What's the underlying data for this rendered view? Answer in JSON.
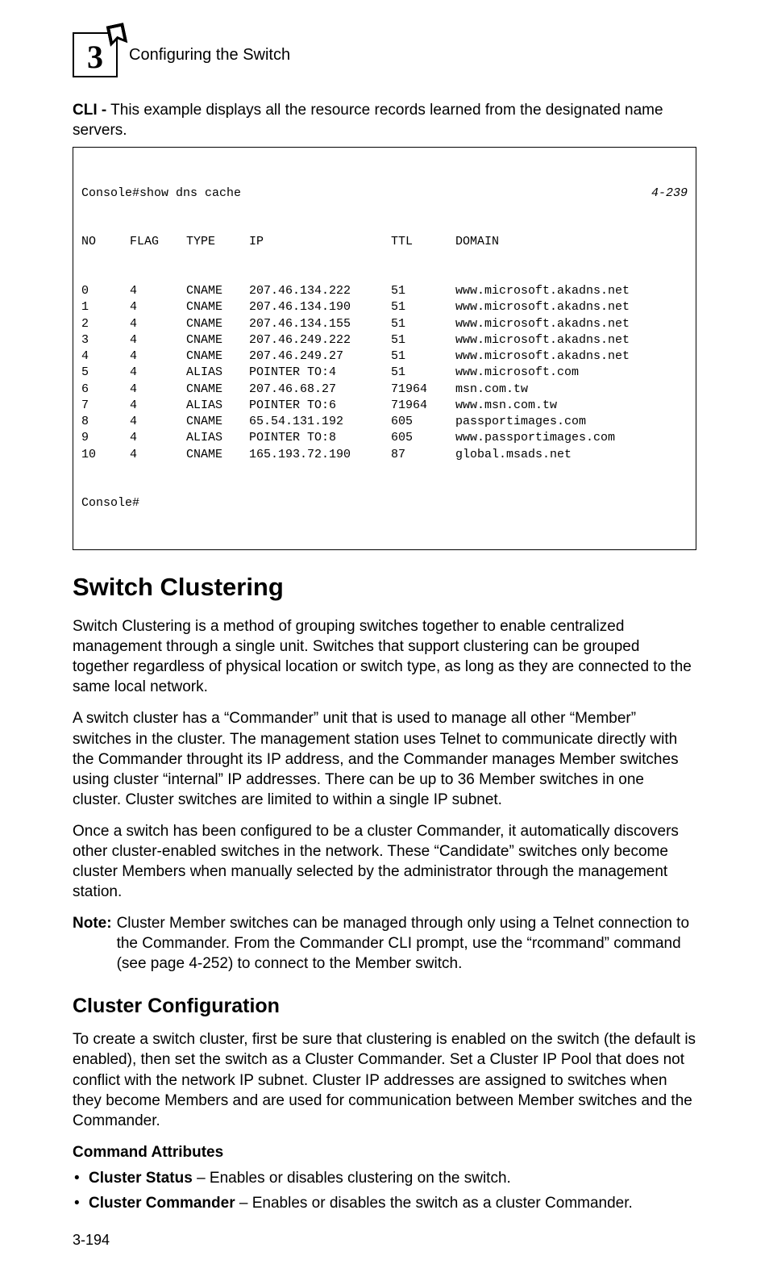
{
  "header": {
    "chapter_number": "3",
    "chapter_title": "Configuring the Switch"
  },
  "cli_intro": {
    "prefix_bold": "CLI -",
    "rest": " This example displays all the resource records learned from the designated name servers."
  },
  "code": {
    "top_left": "Console#show dns cache",
    "top_right": "4-239",
    "headers": {
      "no": "NO",
      "flag": "FLAG",
      "type": "TYPE",
      "ip": "IP",
      "ttl": "TTL",
      "domain": "DOMAIN"
    },
    "rows": [
      {
        "no": "0",
        "flag": "4",
        "type": "CNAME",
        "ip": "207.46.134.222",
        "ttl": "51",
        "domain": "www.microsoft.akadns.net"
      },
      {
        "no": "1",
        "flag": "4",
        "type": "CNAME",
        "ip": "207.46.134.190",
        "ttl": "51",
        "domain": "www.microsoft.akadns.net"
      },
      {
        "no": "2",
        "flag": "4",
        "type": "CNAME",
        "ip": "207.46.134.155",
        "ttl": "51",
        "domain": "www.microsoft.akadns.net"
      },
      {
        "no": "3",
        "flag": "4",
        "type": "CNAME",
        "ip": "207.46.249.222",
        "ttl": "51",
        "domain": "www.microsoft.akadns.net"
      },
      {
        "no": "4",
        "flag": "4",
        "type": "CNAME",
        "ip": "207.46.249.27",
        "ttl": "51",
        "domain": "www.microsoft.akadns.net"
      },
      {
        "no": "5",
        "flag": "4",
        "type": "ALIAS",
        "ip": "POINTER TO:4",
        "ttl": "51",
        "domain": "www.microsoft.com"
      },
      {
        "no": "6",
        "flag": "4",
        "type": "CNAME",
        "ip": "207.46.68.27",
        "ttl": "71964",
        "domain": "msn.com.tw"
      },
      {
        "no": "7",
        "flag": "4",
        "type": "ALIAS",
        "ip": "POINTER TO:6",
        "ttl": "71964",
        "domain": "www.msn.com.tw"
      },
      {
        "no": "8",
        "flag": "4",
        "type": "CNAME",
        "ip": "65.54.131.192",
        "ttl": "605",
        "domain": "passportimages.com"
      },
      {
        "no": "9",
        "flag": "4",
        "type": "ALIAS",
        "ip": "POINTER TO:8",
        "ttl": "605",
        "domain": "www.passportimages.com"
      },
      {
        "no": "10",
        "flag": "4",
        "type": "CNAME",
        "ip": "165.193.72.190",
        "ttl": "87",
        "domain": "global.msads.net"
      }
    ],
    "bottom": "Console#"
  },
  "h1_switch_clustering": "Switch Clustering",
  "paras": {
    "p1": "Switch Clustering is a method of grouping switches together to enable centralized management through a single unit. Switches that support clustering can be grouped together regardless of physical location or switch type, as long as they are connected to the same local network.",
    "p2": "A switch cluster has a “Commander” unit that is used to manage all other “Member” switches in the cluster. The management station uses Telnet to communicate directly with the Commander throught its IP address, and the Commander manages Member switches using cluster “internal” IP addresses. There can be up to 36 Member switches in one cluster. Cluster switches are limited to within a single IP subnet.",
    "p3": "Once a switch has been configured to be a cluster Commander, it automatically discovers other cluster-enabled switches in the network. These “Candidate” switches only become cluster Members when manually selected by the administrator through the management station."
  },
  "note": {
    "label": "Note:",
    "body": "Cluster Member switches can be managed through only using a Telnet connection to the Commander. From the Commander CLI prompt, use the “rcommand” command (see page 4-252) to connect to the Member switch."
  },
  "h2_cluster_config": "Cluster Configuration",
  "cluster_config_para": "To create a switch cluster, first be sure that clustering is enabled on the switch (the default is enabled), then set the switch as a Cluster Commander. Set a Cluster IP Pool that does not conflict with the network IP subnet. Cluster IP addresses are assigned to switches when they become Members and are used for communication between Member switches and the Commander.",
  "cmd_attr_heading": "Command Attributes",
  "bullets": [
    {
      "bold": "Cluster Status",
      "rest": " – Enables or disables clustering on the switch."
    },
    {
      "bold": "Cluster Commander",
      "rest": " – Enables or disables the switch as a cluster Commander."
    }
  ],
  "pagenum": "3-194"
}
